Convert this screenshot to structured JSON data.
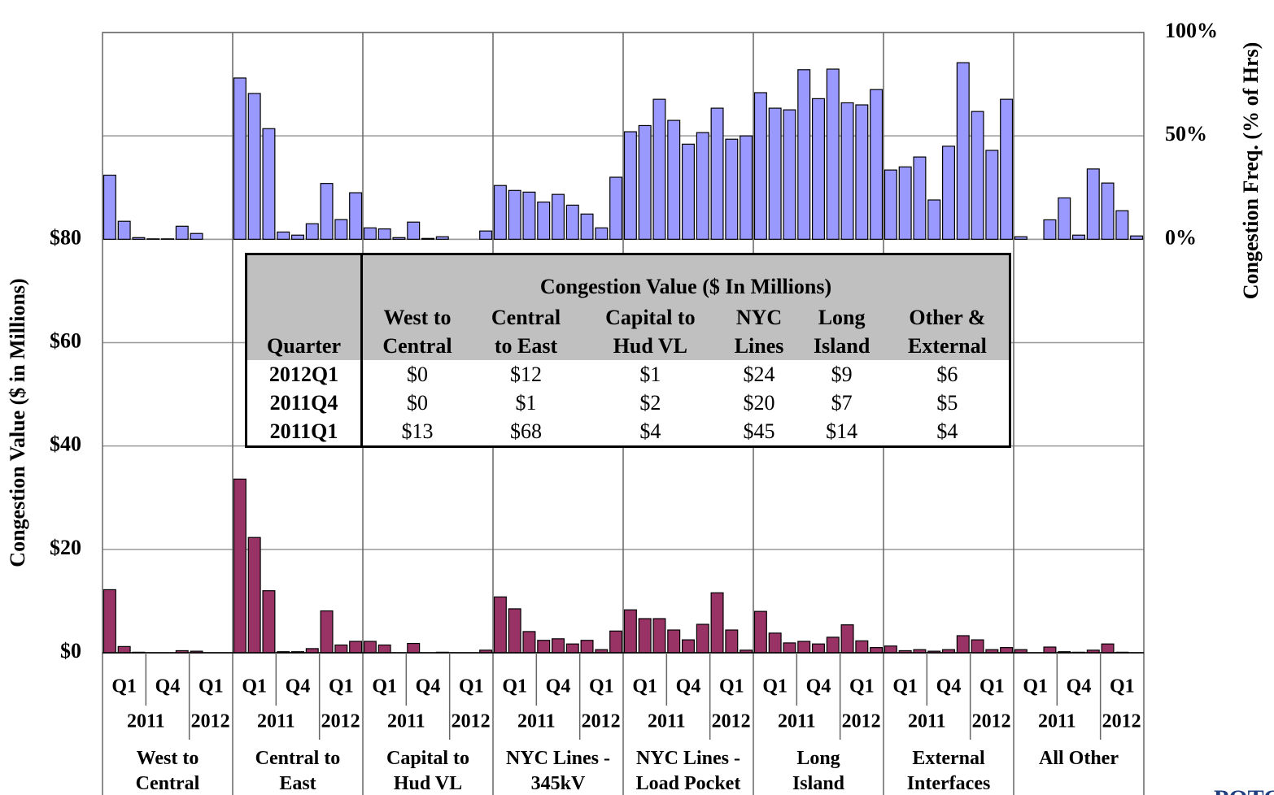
{
  "chart_data": {
    "type": "bar",
    "y_label": "Congestion Value ($ in Millions)",
    "y2_label": "Congestion Freq. (% of Hrs)",
    "ylim": [
      0,
      120
    ],
    "yticks": [
      {
        "value": 0,
        "label": "$0"
      },
      {
        "value": 20,
        "label": "$20"
      },
      {
        "value": 40,
        "label": "$40"
      },
      {
        "value": 60,
        "label": "$60"
      },
      {
        "value": 80,
        "label": "$80"
      }
    ],
    "y2lim": [
      -200,
      100
    ],
    "y2ticks": [
      {
        "value": 0,
        "label": "0%"
      },
      {
        "value": 50,
        "label": "50%"
      },
      {
        "value": 100,
        "label": "100%"
      }
    ],
    "grid": true,
    "groups": [
      "West to\nCentral",
      "Central to\nEast",
      "Capital to\nHud VL",
      "NYC Lines -\n345kV",
      "NYC Lines -\nLoad Pocket",
      "Long\nIsland",
      "External\nInterfaces",
      "All Other"
    ],
    "quarter_labels": [
      "Q1",
      "Q4",
      "Q1"
    ],
    "year_labels": [
      "2011",
      "2012"
    ],
    "series": [
      {
        "color": "#993366",
        "values": [
          12.2,
          1.2,
          0.1,
          0,
          0,
          0.4,
          0.3,
          0,
          0,
          33.6,
          22.3,
          12,
          0.2,
          0.2,
          0.8,
          8.1,
          1.5,
          2.2,
          2.2,
          1.5,
          0,
          1.8,
          0,
          0.1,
          0,
          0,
          0.5,
          10.8,
          8.5,
          4.1,
          2.4,
          2.7,
          1.7,
          2.4,
          0.6,
          4.2,
          8.3,
          6.6,
          6.6,
          4.4,
          2.5,
          5.5,
          11.6,
          4.4,
          0.5,
          8,
          3.8,
          1.9,
          2.2,
          1.7,
          3,
          5.4,
          2.3,
          1,
          1.3,
          0.4,
          0.6,
          0.3,
          0.6,
          3.3,
          2.5,
          0.6,
          1,
          0.6,
          0,
          1.1,
          0.2,
          0.1,
          0.5,
          1.7,
          0.1,
          0
        ]
      },
      {
        "color": "#9999ff",
        "axis": "y2",
        "values": [
          31,
          8.7,
          0.8,
          0.2,
          0.2,
          6.3,
          2.8,
          0,
          0,
          78,
          70.5,
          53.5,
          3.5,
          2,
          7.5,
          27,
          9.5,
          22.5,
          5.5,
          5,
          0.8,
          8.3,
          0.4,
          1.2,
          0,
          0,
          4,
          26,
          23.6,
          22.8,
          18,
          21.7,
          16.5,
          12.2,
          5.5,
          30,
          52,
          55,
          67.7,
          57.5,
          46,
          51.6,
          63.4,
          48.4,
          50,
          70.9,
          63.4,
          62.6,
          82,
          68,
          82.3,
          66,
          65,
          72.4,
          33.5,
          35,
          39.8,
          19,
          45,
          85.4,
          61.8,
          43,
          67.7,
          1.2,
          0,
          9.4,
          20,
          2,
          34,
          27.2,
          13.8,
          1.6
        ]
      }
    ],
    "table": {
      "title": "Congestion Value ($ In Millions)",
      "header": [
        "Quarter",
        "West to\nCentral",
        "Central\nto East",
        "Capital to\nHud VL",
        "NYC\nLines",
        "Long\nIsland",
        "Other &\nExternal"
      ],
      "rows": [
        [
          "2012Q1",
          "$0",
          "$12",
          "$1",
          "$24",
          "$9",
          "$6"
        ],
        [
          "2011Q4",
          "$0",
          "$1",
          "$2",
          "$20",
          "$7",
          "$5"
        ],
        [
          "2011Q1",
          "$13",
          "$68",
          "$4",
          "$45",
          "$14",
          "$4"
        ]
      ]
    },
    "logo_text": "POTOMAC"
  }
}
